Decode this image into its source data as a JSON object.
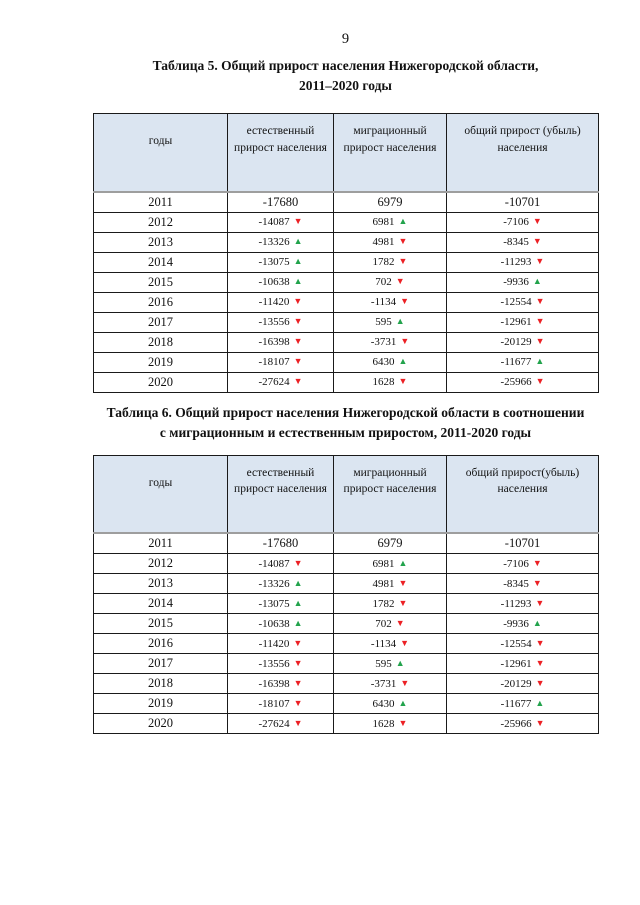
{
  "page_number": "9",
  "colors": {
    "header_bg": "#dbe5f1",
    "header_border": "#9e9e9e",
    "up_green": "#22a34c",
    "down_red": "#ec2024"
  },
  "icons": {
    "up_arrow": "▲",
    "down_arrow": "▼"
  },
  "tables": [
    {
      "id": "table5",
      "title_lines": [
        "Таблица 5. Общий прирост населения Нижегородской области,",
        "2011–2020 годы"
      ],
      "columns": [
        "годы",
        "естественный прирост населения",
        "миграционный прирост населения",
        "общий прирост (убыль) населения"
      ],
      "rows": [
        {
          "year": "2011",
          "cells": [
            {
              "v": "-17680"
            },
            {
              "v": "6979"
            },
            {
              "v": "-10701"
            }
          ]
        },
        {
          "year": "2012",
          "cells": [
            {
              "v": "-14087",
              "t": "down"
            },
            {
              "v": "6981",
              "t": "up"
            },
            {
              "v": "-7106",
              "t": "down"
            }
          ]
        },
        {
          "year": "2013",
          "cells": [
            {
              "v": "-13326",
              "t": "up"
            },
            {
              "v": "4981",
              "t": "down"
            },
            {
              "v": "-8345",
              "t": "down"
            }
          ]
        },
        {
          "year": "2014",
          "cells": [
            {
              "v": "-13075",
              "t": "up"
            },
            {
              "v": "1782",
              "t": "down"
            },
            {
              "v": "-11293",
              "t": "down"
            }
          ]
        },
        {
          "year": "2015",
          "cells": [
            {
              "v": "-10638",
              "t": "up"
            },
            {
              "v": "702",
              "t": "down"
            },
            {
              "v": "-9936",
              "t": "up"
            }
          ]
        },
        {
          "year": "2016",
          "cells": [
            {
              "v": "-11420",
              "t": "down"
            },
            {
              "v": "-1134",
              "t": "down"
            },
            {
              "v": "-12554",
              "t": "down"
            }
          ]
        },
        {
          "year": "2017",
          "cells": [
            {
              "v": "-13556",
              "t": "down"
            },
            {
              "v": "595",
              "t": "up"
            },
            {
              "v": "-12961",
              "t": "down"
            }
          ]
        },
        {
          "year": "2018",
          "cells": [
            {
              "v": "-16398",
              "t": "down"
            },
            {
              "v": "-3731",
              "t": "down"
            },
            {
              "v": "-20129",
              "t": "down"
            }
          ]
        },
        {
          "year": "2019",
          "cells": [
            {
              "v": "-18107",
              "t": "down"
            },
            {
              "v": "6430",
              "t": "up"
            },
            {
              "v": "-11677",
              "t": "up"
            }
          ]
        },
        {
          "year": "2020",
          "cells": [
            {
              "v": "-27624",
              "t": "down"
            },
            {
              "v": "1628",
              "t": "down"
            },
            {
              "v": "-25966",
              "t": "down"
            }
          ]
        }
      ]
    },
    {
      "id": "table6",
      "title_lines": [
        "Таблица 6. Общий прирост населения Нижегородской области в соотношении",
        "с миграционным и естественным приростом, 2011-2020 годы"
      ],
      "columns": [
        "годы",
        "естественный прирост населения",
        "миграционный прирост населения",
        "общий прирост(убыль) населения"
      ],
      "rows": [
        {
          "year": "2011",
          "cells": [
            {
              "v": "-17680"
            },
            {
              "v": "6979"
            },
            {
              "v": "-10701"
            }
          ]
        },
        {
          "year": "2012",
          "cells": [
            {
              "v": "-14087",
              "t": "down"
            },
            {
              "v": "6981",
              "t": "up"
            },
            {
              "v": "-7106",
              "t": "down"
            }
          ]
        },
        {
          "year": "2013",
          "cells": [
            {
              "v": "-13326",
              "t": "up"
            },
            {
              "v": "4981",
              "t": "down"
            },
            {
              "v": "-8345",
              "t": "down"
            }
          ]
        },
        {
          "year": "2014",
          "cells": [
            {
              "v": "-13075",
              "t": "up"
            },
            {
              "v": "1782",
              "t": "down"
            },
            {
              "v": "-11293",
              "t": "down"
            }
          ]
        },
        {
          "year": "2015",
          "cells": [
            {
              "v": "-10638",
              "t": "up"
            },
            {
              "v": "702",
              "t": "down"
            },
            {
              "v": "-9936",
              "t": "up"
            }
          ]
        },
        {
          "year": "2016",
          "cells": [
            {
              "v": "-11420",
              "t": "down"
            },
            {
              "v": "-1134",
              "t": "down"
            },
            {
              "v": "-12554",
              "t": "down"
            }
          ]
        },
        {
          "year": "2017",
          "cells": [
            {
              "v": "-13556",
              "t": "down"
            },
            {
              "v": "595",
              "t": "up"
            },
            {
              "v": "-12961",
              "t": "down"
            }
          ]
        },
        {
          "year": "2018",
          "cells": [
            {
              "v": "-16398",
              "t": "down"
            },
            {
              "v": "-3731",
              "t": "down"
            },
            {
              "v": "-20129",
              "t": "down"
            }
          ]
        },
        {
          "year": "2019",
          "cells": [
            {
              "v": "-18107",
              "t": "down"
            },
            {
              "v": "6430",
              "t": "up"
            },
            {
              "v": "-11677",
              "t": "up"
            }
          ]
        },
        {
          "year": "2020",
          "cells": [
            {
              "v": "-27624",
              "t": "down"
            },
            {
              "v": "1628",
              "t": "down"
            },
            {
              "v": "-25966",
              "t": "down"
            }
          ]
        }
      ]
    }
  ]
}
